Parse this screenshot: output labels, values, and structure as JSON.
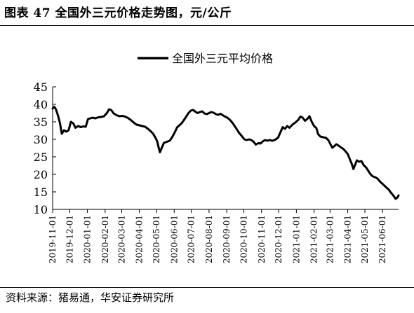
{
  "title": "图表 47 全国外三元价格走势图，元/公斤",
  "source": "资料来源：猪易通，华安证券研究所",
  "chart_data": {
    "type": "line",
    "xlabel": "",
    "ylabel": "",
    "ylim": [
      10,
      45
    ],
    "yticks": [
      10,
      15,
      20,
      25,
      30,
      35,
      40,
      45
    ],
    "grid": false,
    "legend_placement": "top-center",
    "xlim": [
      "2019-11-01",
      "2021-06-29"
    ],
    "xticks": [
      "2019-11-01",
      "2019-12-01",
      "2020-01-01",
      "2020-02-01",
      "2020-03-01",
      "2020-04-01",
      "2020-05-01",
      "2020-06-01",
      "2020-07-01",
      "2020-08-01",
      "2020-09-01",
      "2020-10-01",
      "2020-11-01",
      "2020-12-01",
      "2021-01-01",
      "2021-02-01",
      "2021-03-01",
      "2021-04-01",
      "2021-05-01",
      "2021-06-01"
    ],
    "series": [
      {
        "name": "全国外三元平均价格",
        "color": "#000000",
        "points": [
          [
            "2019-11-01",
            38.8
          ],
          [
            "2019-11-04",
            39.3
          ],
          [
            "2019-11-07",
            38.5
          ],
          [
            "2019-11-11",
            36.5
          ],
          [
            "2019-11-14",
            34.5
          ],
          [
            "2019-11-17",
            31.6
          ],
          [
            "2019-11-21",
            32.6
          ],
          [
            "2019-11-25",
            32.2
          ],
          [
            "2019-11-29",
            32.6
          ],
          [
            "2019-12-03",
            35.0
          ],
          [
            "2019-12-07",
            34.6
          ],
          [
            "2019-12-11",
            33.3
          ],
          [
            "2019-12-16",
            33.8
          ],
          [
            "2019-12-20",
            33.5
          ],
          [
            "2019-12-25",
            33.7
          ],
          [
            "2019-12-29",
            33.6
          ],
          [
            "2020-01-02",
            35.8
          ],
          [
            "2020-01-06",
            36.0
          ],
          [
            "2020-01-10",
            36.2
          ],
          [
            "2020-01-15",
            36.0
          ],
          [
            "2020-01-20",
            36.3
          ],
          [
            "2020-01-25",
            36.4
          ],
          [
            "2020-01-30",
            36.6
          ],
          [
            "2020-02-04",
            37.5
          ],
          [
            "2020-02-08",
            38.6
          ],
          [
            "2020-02-12",
            38.3
          ],
          [
            "2020-02-16",
            37.4
          ],
          [
            "2020-02-21",
            36.9
          ],
          [
            "2020-02-26",
            36.6
          ],
          [
            "2020-03-02",
            36.7
          ],
          [
            "2020-03-07",
            36.5
          ],
          [
            "2020-03-12",
            36.1
          ],
          [
            "2020-03-17",
            35.5
          ],
          [
            "2020-03-22",
            34.8
          ],
          [
            "2020-03-27",
            34.2
          ],
          [
            "2020-04-01",
            34.0
          ],
          [
            "2020-04-06",
            33.8
          ],
          [
            "2020-04-11",
            33.6
          ],
          [
            "2020-04-16",
            33.0
          ],
          [
            "2020-04-21",
            32.3
          ],
          [
            "2020-04-25",
            31.6
          ],
          [
            "2020-04-29",
            30.5
          ],
          [
            "2020-05-02",
            29.5
          ],
          [
            "2020-05-05",
            27.5
          ],
          [
            "2020-05-07",
            26.3
          ],
          [
            "2020-05-10",
            27.5
          ],
          [
            "2020-05-14",
            29.0
          ],
          [
            "2020-05-19",
            29.3
          ],
          [
            "2020-05-24",
            29.6
          ],
          [
            "2020-05-28",
            30.5
          ],
          [
            "2020-06-02",
            32.0
          ],
          [
            "2020-06-06",
            33.4
          ],
          [
            "2020-06-10",
            34.0
          ],
          [
            "2020-06-14",
            34.6
          ],
          [
            "2020-06-18",
            35.5
          ],
          [
            "2020-06-22",
            36.5
          ],
          [
            "2020-06-26",
            37.5
          ],
          [
            "2020-06-30",
            38.2
          ],
          [
            "2020-07-04",
            38.4
          ],
          [
            "2020-07-08",
            37.9
          ],
          [
            "2020-07-12",
            37.5
          ],
          [
            "2020-07-16",
            37.8
          ],
          [
            "2020-07-20",
            38.0
          ],
          [
            "2020-07-24",
            37.4
          ],
          [
            "2020-07-28",
            37.2
          ],
          [
            "2020-08-01",
            37.5
          ],
          [
            "2020-08-05",
            37.8
          ],
          [
            "2020-08-09",
            37.6
          ],
          [
            "2020-08-13",
            37.2
          ],
          [
            "2020-08-17",
            37.0
          ],
          [
            "2020-08-21",
            37.3
          ],
          [
            "2020-08-25",
            36.9
          ],
          [
            "2020-08-29",
            36.5
          ],
          [
            "2020-09-02",
            36.2
          ],
          [
            "2020-09-07",
            35.5
          ],
          [
            "2020-09-12",
            34.5
          ],
          [
            "2020-09-17",
            33.3
          ],
          [
            "2020-09-22",
            32.0
          ],
          [
            "2020-09-27",
            31.0
          ],
          [
            "2020-10-02",
            30.0
          ],
          [
            "2020-10-06",
            29.8
          ],
          [
            "2020-10-10",
            30.0
          ],
          [
            "2020-10-14",
            29.8
          ],
          [
            "2020-10-18",
            29.3
          ],
          [
            "2020-10-22",
            28.5
          ],
          [
            "2020-10-26",
            28.9
          ],
          [
            "2020-10-30",
            28.8
          ],
          [
            "2020-11-03",
            29.4
          ],
          [
            "2020-11-07",
            29.8
          ],
          [
            "2020-11-11",
            29.6
          ],
          [
            "2020-11-15",
            29.8
          ],
          [
            "2020-11-20",
            29.6
          ],
          [
            "2020-11-25",
            29.9
          ],
          [
            "2020-11-30",
            30.5
          ],
          [
            "2020-12-04",
            32.0
          ],
          [
            "2020-12-08",
            33.5
          ],
          [
            "2020-12-12",
            33.0
          ],
          [
            "2020-12-16",
            33.8
          ],
          [
            "2020-12-20",
            33.3
          ],
          [
            "2020-12-25",
            34.2
          ],
          [
            "2020-12-30",
            34.8
          ],
          [
            "2021-01-04",
            35.5
          ],
          [
            "2021-01-08",
            36.5
          ],
          [
            "2021-01-12",
            36.2
          ],
          [
            "2021-01-16",
            35.3
          ],
          [
            "2021-01-20",
            35.8
          ],
          [
            "2021-01-24",
            36.6
          ],
          [
            "2021-01-28",
            35.0
          ],
          [
            "2021-02-01",
            33.8
          ],
          [
            "2021-02-05",
            33.2
          ],
          [
            "2021-02-08",
            31.5
          ],
          [
            "2021-02-12",
            30.8
          ],
          [
            "2021-02-17",
            30.6
          ],
          [
            "2021-02-22",
            30.4
          ],
          [
            "2021-02-26",
            29.8
          ],
          [
            "2021-03-02",
            28.5
          ],
          [
            "2021-03-05",
            27.6
          ],
          [
            "2021-03-08",
            28.0
          ],
          [
            "2021-03-12",
            28.6
          ],
          [
            "2021-03-16",
            28.2
          ],
          [
            "2021-03-20",
            27.7
          ],
          [
            "2021-03-24",
            27.3
          ],
          [
            "2021-03-28",
            26.6
          ],
          [
            "2021-04-01",
            25.8
          ],
          [
            "2021-04-05",
            24.2
          ],
          [
            "2021-04-08",
            23.0
          ],
          [
            "2021-04-11",
            21.5
          ],
          [
            "2021-04-14",
            22.8
          ],
          [
            "2021-04-17",
            24.0
          ],
          [
            "2021-04-21",
            23.6
          ],
          [
            "2021-04-25",
            23.8
          ],
          [
            "2021-04-29",
            22.6
          ],
          [
            "2021-05-03",
            22.0
          ],
          [
            "2021-05-07",
            21.0
          ],
          [
            "2021-05-11",
            20.0
          ],
          [
            "2021-05-15",
            19.4
          ],
          [
            "2021-05-19",
            19.2
          ],
          [
            "2021-05-23",
            18.8
          ],
          [
            "2021-05-27",
            18.0
          ],
          [
            "2021-05-31",
            17.4
          ],
          [
            "2021-06-04",
            16.8
          ],
          [
            "2021-06-08",
            16.2
          ],
          [
            "2021-06-12",
            15.6
          ],
          [
            "2021-06-15",
            14.9
          ],
          [
            "2021-06-18",
            14.3
          ],
          [
            "2021-06-21",
            13.7
          ],
          [
            "2021-06-24",
            13.0
          ],
          [
            "2021-06-27",
            13.4
          ],
          [
            "2021-06-29",
            14.0
          ]
        ]
      }
    ]
  }
}
